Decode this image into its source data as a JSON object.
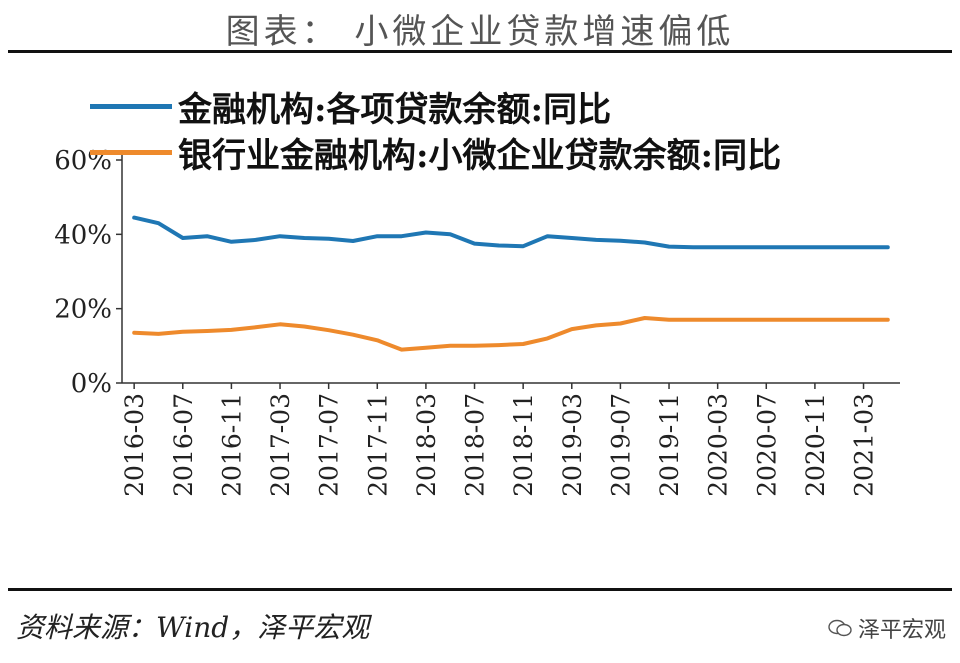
{
  "title": "图表： 小微企业贷款增速偏低",
  "source": "资料来源：Wind，泽平宏观",
  "watermark": "泽平宏观",
  "colors": {
    "series1": "#1f77b4",
    "series2": "#ee8a2c",
    "axis": "#333333"
  },
  "chart_data": {
    "type": "line",
    "x": [
      "2016-03",
      "2016-05",
      "2016-07",
      "2016-09",
      "2016-11",
      "2017-01",
      "2017-03",
      "2017-05",
      "2017-07",
      "2017-09",
      "2017-11",
      "2018-01",
      "2018-03",
      "2018-05",
      "2018-07",
      "2018-09",
      "2018-11",
      "2019-01",
      "2019-03",
      "2019-05",
      "2019-07",
      "2019-09",
      "2019-11",
      "2020-01",
      "2020-03",
      "2020-05",
      "2020-07",
      "2020-09",
      "2020-11",
      "2021-01",
      "2021-03",
      "2021-05"
    ],
    "x_tick_labels": [
      "2016-03",
      "2016-07",
      "2016-11",
      "2017-03",
      "2017-07",
      "2017-11",
      "2018-03",
      "2018-07",
      "2018-11",
      "2019-03",
      "2019-07",
      "2019-11",
      "2020-03",
      "2020-07",
      "2020-11",
      "2021-03"
    ],
    "y_tick_labels": [
      "0%",
      "20%",
      "40%",
      "60%"
    ],
    "ylim": [
      0,
      60
    ],
    "series": [
      {
        "name": "金融机构:各项贷款余额:同比",
        "values": [
          44.5,
          43.0,
          39.0,
          39.5,
          38.0,
          38.5,
          39.5,
          39.0,
          38.8,
          38.2,
          39.5,
          39.5,
          40.5,
          40.0,
          37.5,
          37.0,
          36.8,
          39.5,
          39.0,
          38.5,
          38.3,
          37.8,
          36.7,
          36.5,
          36.5,
          36.5,
          36.5,
          36.5,
          36.5,
          36.5,
          36.5,
          36.5
        ]
      },
      {
        "name": "银行业金融机构:小微企业贷款余额:同比",
        "values": [
          13.5,
          13.2,
          13.8,
          14.0,
          14.3,
          15.0,
          15.8,
          15.2,
          14.2,
          13.0,
          11.5,
          9.0,
          9.5,
          10.0,
          10.0,
          10.2,
          10.5,
          12.0,
          14.5,
          15.5,
          16.0,
          17.5,
          17.0,
          17.0,
          17.0,
          17.0,
          17.0,
          17.0,
          17.0,
          17.0,
          17.0,
          17.0
        ]
      }
    ]
  }
}
